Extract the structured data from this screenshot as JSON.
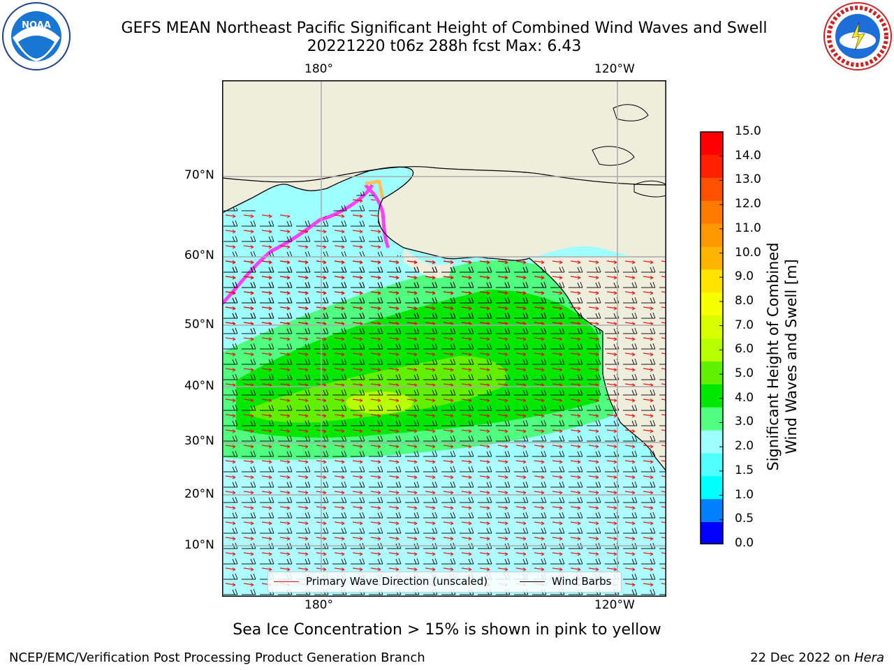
{
  "title_line1": "GEFS MEAN Northeast Pacific Significant Height of Combined Wind Waves and Swell",
  "title_line2": "20221220 t06z 288h fcst   Max: 6.43",
  "logos": {
    "left": "noaa-logo-icon",
    "right": "nws-logo-icon"
  },
  "map": {
    "top_lon_labels": [
      "180°",
      "120°W"
    ],
    "bottom_lon_labels": [
      "180°",
      "120°W"
    ],
    "lat_labels": [
      "70°N",
      "60°N",
      "50°N",
      "40°N",
      "30°N",
      "20°N",
      "10°N"
    ],
    "land_color": "#efeddc",
    "coast_color": "#000000",
    "grid_color": "#aaaaaa",
    "max_value": 6.43
  },
  "legend": {
    "primary_wave": "Primary Wave Direction (unscaled)",
    "wind_barbs": "Wind Barbs",
    "primary_wave_color": "#ff0000",
    "wind_barbs_color": "#000000"
  },
  "colorbar": {
    "label_line1": "Significant Height of Combined",
    "label_line2": "Wind Waves and Swell [m]",
    "ticks": [
      "15.0",
      "14.0",
      "13.0",
      "12.0",
      "11.0",
      "10.0",
      "9.0",
      "8.0",
      "7.0",
      "6.0",
      "5.0",
      "4.0",
      "3.0",
      "2.0",
      "1.5",
      "1.0",
      "0.5",
      "0.0"
    ],
    "colors_top_to_bottom": [
      "#ff0000",
      "#ff2000",
      "#ff5000",
      "#ff7800",
      "#ff9800",
      "#ffb400",
      "#ffe400",
      "#f8ff00",
      "#d8ff00",
      "#b8ff00",
      "#60f000",
      "#00e800",
      "#50ff80",
      "#a0ffff",
      "#50ffff",
      "#00ffff",
      "#0080ff",
      "#0000ff"
    ]
  },
  "caption": "Sea Ice Concentration > 15% is shown in pink to yellow",
  "footer_left": "NCEP/EMC/Verification Post Processing Product Generation Branch",
  "footer_right_date": "22 Dec 2022 on ",
  "footer_right_host": "Hera"
}
